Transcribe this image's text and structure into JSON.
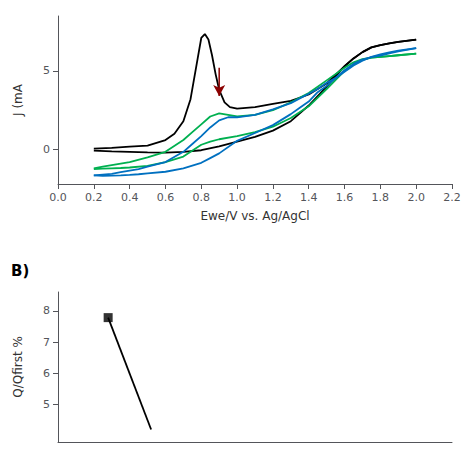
{
  "chart_data": [
    {
      "type": "line",
      "xlabel": "Ewe/V vs. Ag/AgCl",
      "ylabel": "J (mA",
      "xlim": [
        0.0,
        2.2
      ],
      "ylim": [
        -2.2,
        8.5
      ],
      "xticks": [
        {
          "value": 0.0,
          "label": "0.0"
        },
        0.2,
        0.4,
        0.6,
        0.8,
        {
          "value": 1.0,
          "label": "1.0"
        },
        1.2,
        1.4,
        1.6,
        1.8,
        {
          "value": 2.0,
          "label": "2.0"
        },
        2.2
      ],
      "yticks": [
        0,
        5
      ],
      "series": [
        {
          "color": "#000000",
          "x": [
            0.2,
            0.3,
            0.4,
            0.5,
            0.6,
            0.65,
            0.7,
            0.74,
            0.78,
            0.8,
            0.82,
            0.84,
            0.86,
            0.88,
            0.9,
            0.93,
            0.96,
            1.0,
            1.1,
            1.2,
            1.3,
            1.4,
            1.5,
            1.6,
            1.65,
            1.7,
            1.75,
            1.8,
            1.85,
            1.9,
            2.0
          ],
          "values": [
            0.05,
            0.1,
            0.18,
            0.25,
            0.6,
            1.0,
            1.8,
            3.2,
            5.8,
            7.1,
            7.35,
            7.0,
            6.0,
            4.8,
            3.8,
            3.0,
            2.7,
            2.6,
            2.7,
            2.9,
            3.1,
            3.5,
            4.2,
            5.3,
            5.8,
            6.2,
            6.5,
            6.65,
            6.75,
            6.85,
            7.0
          ]
        },
        {
          "color": "#000000",
          "x": [
            2.0,
            1.9,
            1.85,
            1.8,
            1.75,
            1.7,
            1.65,
            1.6,
            1.5,
            1.4,
            1.3,
            1.2,
            1.1,
            1.0,
            0.9,
            0.8,
            0.7,
            0.6,
            0.5,
            0.4,
            0.3,
            0.2
          ],
          "values": [
            7.0,
            6.85,
            6.75,
            6.65,
            6.5,
            6.2,
            5.8,
            5.3,
            4.0,
            2.8,
            1.8,
            1.2,
            0.8,
            0.5,
            0.2,
            -0.05,
            -0.15,
            -0.2,
            -0.18,
            -0.15,
            -0.12,
            -0.08
          ]
        },
        {
          "color": "#00b050",
          "x": [
            0.2,
            0.25,
            0.3,
            0.35,
            0.4,
            0.5,
            0.6,
            0.7,
            0.75,
            0.8,
            0.85,
            0.9,
            0.95,
            1.0,
            1.1,
            1.2,
            1.3,
            1.4,
            1.5,
            1.6,
            1.65,
            1.7,
            1.75,
            1.8,
            1.85,
            1.9,
            2.0
          ],
          "values": [
            -1.2,
            -1.1,
            -1.0,
            -0.9,
            -0.8,
            -0.5,
            -0.15,
            0.6,
            1.1,
            1.6,
            2.1,
            2.3,
            2.2,
            2.1,
            2.2,
            2.5,
            3.0,
            3.6,
            4.4,
            5.2,
            5.55,
            5.75,
            5.85,
            5.9,
            5.95,
            6.0,
            6.1
          ]
        },
        {
          "color": "#00b050",
          "x": [
            2.0,
            1.9,
            1.85,
            1.8,
            1.75,
            1.7,
            1.65,
            1.6,
            1.5,
            1.4,
            1.3,
            1.2,
            1.1,
            1.0,
            0.9,
            0.85,
            0.8,
            0.7,
            0.6,
            0.5,
            0.4,
            0.35,
            0.3,
            0.25,
            0.2
          ],
          "values": [
            6.1,
            6.0,
            5.95,
            5.9,
            5.85,
            5.7,
            5.4,
            5.0,
            3.85,
            2.75,
            2.0,
            1.45,
            1.1,
            0.85,
            0.65,
            0.5,
            0.3,
            -0.45,
            -0.8,
            -1.05,
            -1.15,
            -1.18,
            -1.2,
            -1.22,
            -1.25
          ]
        },
        {
          "color": "#0070c0",
          "x": [
            0.2,
            0.25,
            0.3,
            0.35,
            0.4,
            0.45,
            0.5,
            0.6,
            0.7,
            0.75,
            0.8,
            0.85,
            0.9,
            0.95,
            1.0,
            1.1,
            1.2,
            1.3,
            1.4,
            1.45,
            1.5,
            1.55,
            1.6,
            1.65,
            1.7,
            1.75,
            1.8,
            1.85,
            1.9,
            2.0
          ],
          "values": [
            -1.65,
            -1.6,
            -1.55,
            -1.45,
            -1.35,
            -1.25,
            -1.1,
            -0.8,
            -0.15,
            0.35,
            0.85,
            1.4,
            1.85,
            2.05,
            2.05,
            2.2,
            2.55,
            2.95,
            3.55,
            3.85,
            4.25,
            4.55,
            5.05,
            5.45,
            5.72,
            5.88,
            5.98,
            6.12,
            6.25,
            6.45
          ]
        },
        {
          "color": "#0070c0",
          "x": [
            2.0,
            1.9,
            1.85,
            1.8,
            1.75,
            1.7,
            1.65,
            1.6,
            1.55,
            1.5,
            1.45,
            1.4,
            1.35,
            1.3,
            1.2,
            1.1,
            1.0,
            0.9,
            0.85,
            0.8,
            0.7,
            0.6,
            0.5,
            0.45,
            0.4,
            0.35,
            0.3,
            0.25,
            0.2
          ],
          "values": [
            6.45,
            6.3,
            6.18,
            6.05,
            5.9,
            5.65,
            5.35,
            4.95,
            4.55,
            4.05,
            3.65,
            3.05,
            2.65,
            2.25,
            1.55,
            1.05,
            0.55,
            -0.25,
            -0.55,
            -0.85,
            -1.2,
            -1.42,
            -1.52,
            -1.58,
            -1.62,
            -1.65,
            -1.67,
            -1.68,
            -1.65
          ]
        }
      ],
      "annotations": [
        {
          "type": "arrow",
          "x": 0.9,
          "y_start": 5.2,
          "y_end": 3.4,
          "color": "#8B0000"
        }
      ]
    },
    {
      "type": "line",
      "title": "B)",
      "ylabel": "Q/Qfirst %",
      "xlim": [
        0.0,
        2.2
      ],
      "ylim": [
        3.8,
        8.6
      ],
      "yticks": [
        5,
        6,
        7,
        8
      ],
      "tick_labels": "y",
      "series": [
        {
          "type": "line",
          "color": "#000000",
          "x": [
            0.28,
            0.52
          ],
          "values": [
            7.78,
            4.2
          ]
        },
        {
          "type": "scatter",
          "marker": "square",
          "color": "#000000",
          "x": [
            0.28
          ],
          "values": [
            7.78
          ]
        }
      ]
    }
  ]
}
